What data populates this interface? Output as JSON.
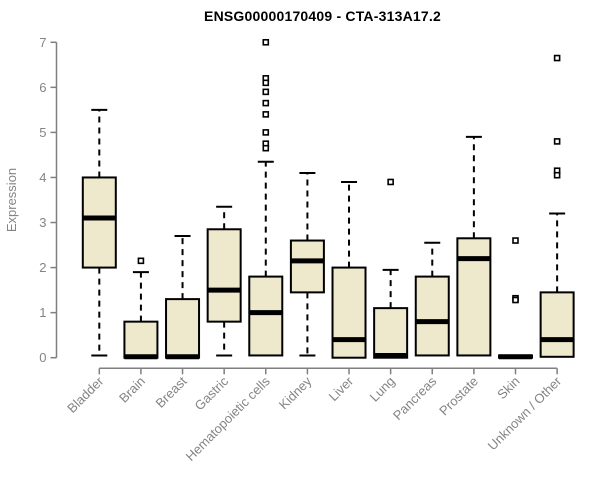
{
  "title": "ENSG00000170409 - CTA-313A17.2",
  "chart_data": {
    "type": "boxplot",
    "title": "ENSG00000170409 - CTA-313A17.2",
    "xlabel": "",
    "ylabel": "Expression",
    "ylim": [
      0,
      7
    ],
    "yticks": [
      0,
      1,
      2,
      3,
      4,
      5,
      6,
      7
    ],
    "grid": false,
    "legend": "none",
    "colors": {
      "box_fill": "#EEE8CD",
      "box_stroke": "#000000",
      "median": "#000000",
      "whisker": "#000000",
      "axis": "#7F7F7F",
      "tick_label": "#848484",
      "title": "#000000",
      "background": "#FFFFFF"
    },
    "categories": [
      "Bladder",
      "Brain",
      "Breast",
      "Gastric",
      "Hematopoietic cells",
      "Kidney",
      "Liver",
      "Lung",
      "Pancreas",
      "Prostate",
      "Skin",
      "Unknown / Other"
    ],
    "series": [
      {
        "category": "Bladder",
        "whisker_low": 0.05,
        "q1": 2.0,
        "median": 3.1,
        "q3": 4.0,
        "whisker_high": 5.5,
        "outliers": []
      },
      {
        "category": "Brain",
        "whisker_low": 0.0,
        "q1": 0.0,
        "median": 0.02,
        "q3": 0.8,
        "whisker_high": 1.9,
        "outliers": [
          2.15
        ]
      },
      {
        "category": "Breast",
        "whisker_low": 0.0,
        "q1": 0.0,
        "median": 0.02,
        "q3": 1.3,
        "whisker_high": 2.7,
        "outliers": []
      },
      {
        "category": "Gastric",
        "whisker_low": 0.05,
        "q1": 0.8,
        "median": 1.5,
        "q3": 2.85,
        "whisker_high": 3.35,
        "outliers": []
      },
      {
        "category": "Hematopoietic cells",
        "whisker_low": 0.05,
        "q1": 0.05,
        "median": 1.0,
        "q3": 1.8,
        "whisker_high": 4.35,
        "outliers": [
          7.0,
          6.2,
          6.1,
          5.9,
          5.65,
          5.4,
          5.0,
          4.75,
          4.65
        ]
      },
      {
        "category": "Kidney",
        "whisker_low": 0.05,
        "q1": 1.45,
        "median": 2.15,
        "q3": 2.6,
        "whisker_high": 4.1,
        "outliers": []
      },
      {
        "category": "Liver",
        "whisker_low": 0.0,
        "q1": 0.0,
        "median": 0.4,
        "q3": 2.0,
        "whisker_high": 3.9,
        "outliers": []
      },
      {
        "category": "Lung",
        "whisker_low": 0.0,
        "q1": 0.0,
        "median": 0.05,
        "q3": 1.1,
        "whisker_high": 1.95,
        "outliers": [
          3.9
        ]
      },
      {
        "category": "Pancreas",
        "whisker_low": 0.05,
        "q1": 0.05,
        "median": 0.8,
        "q3": 1.8,
        "whisker_high": 2.55,
        "outliers": []
      },
      {
        "category": "Prostate",
        "whisker_low": 0.05,
        "q1": 0.05,
        "median": 2.2,
        "q3": 2.65,
        "whisker_high": 4.9,
        "outliers": []
      },
      {
        "category": "Skin",
        "whisker_low": 0.0,
        "q1": 0.0,
        "median": 0.02,
        "q3": 0.05,
        "whisker_high": 0.05,
        "outliers": [
          2.6,
          1.32,
          1.28
        ]
      },
      {
        "category": "Unknown / Other",
        "whisker_low": 0.02,
        "q1": 0.02,
        "median": 0.4,
        "q3": 1.45,
        "whisker_high": 3.2,
        "outliers": [
          6.65,
          4.8,
          4.15,
          4.05
        ]
      }
    ]
  }
}
